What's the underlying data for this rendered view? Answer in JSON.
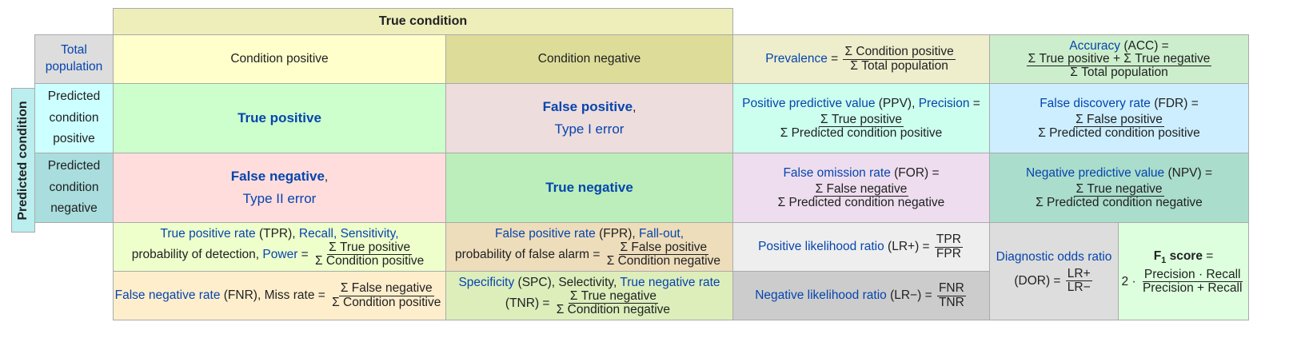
{
  "colors": {
    "link": "#0645ad",
    "true_condition_header": "#eeeebb",
    "total_population": "#dddddd",
    "condition_positive": "#ffffcc",
    "condition_negative": "#dddd99",
    "predicted_condition": "#bbeeee",
    "predicted_positive": "#ccffff",
    "predicted_negative": "#aadddd",
    "true_positive": "#ccffcc",
    "false_positive": "#eedddd",
    "false_negative": "#ffdddd",
    "true_negative": "#bbeebb",
    "prevalence": "#eeeecc",
    "accuracy": "#cceecc",
    "ppv": "#ccffee",
    "fdr": "#cceeff",
    "for": "#eeddee",
    "npv": "#aaddcc",
    "tpr": "#eeffcc",
    "fpr": "#eeddbb",
    "fnr": "#ffeecc",
    "tnr": "#ddeebb",
    "lr_pos": "#eeeeee",
    "lr_neg": "#cccccc",
    "dor": "#dddddd",
    "f1": "#ddffdd"
  },
  "header": {
    "true_condition": "True condition",
    "predicted_condition": "Predicted condition",
    "total_population": [
      "Total",
      "population"
    ],
    "condition_positive": "Condition positive",
    "condition_negative": "Condition negative",
    "predicted_condition_positive": [
      "Predicted",
      "condition",
      "positive"
    ],
    "predicted_condition_negative": [
      "Predicted",
      "condition",
      "negative"
    ]
  },
  "matrix": {
    "true_positive": "True positive",
    "false_positive": "False positive",
    "false_positive_suffix": ",",
    "type_i_error": "Type I error",
    "false_negative": "False negative",
    "false_negative_suffix": ",",
    "type_ii_error": "Type II error",
    "true_negative": "True negative"
  },
  "metrics": {
    "prevalence": {
      "name": "Prevalence",
      "eq": " = ",
      "num": "Σ Condition positive",
      "den": "Σ Total population"
    },
    "accuracy": {
      "name": "Accuracy",
      "abbr": " (ACC) =",
      "num": "Σ True positive + Σ True negative",
      "den": "Σ Total population"
    },
    "ppv": {
      "name": "Positive predictive value",
      "abbr": " (PPV), ",
      "alt": "Precision",
      "eq": " =",
      "num": "Σ True positive",
      "den": "Σ Predicted condition positive"
    },
    "fdr": {
      "name": "False discovery rate",
      "abbr": " (FDR) =",
      "num": "Σ False positive",
      "den": "Σ Predicted condition positive"
    },
    "for": {
      "name": "False omission rate",
      "abbr": " (FOR) =",
      "num": "Σ False negative",
      "den": "Σ Predicted condition negative"
    },
    "npv": {
      "name": "Negative predictive value",
      "abbr": " (NPV) =",
      "num": "Σ True negative",
      "den": "Σ Predicted condition negative"
    },
    "tpr": {
      "name": "True positive rate",
      "abbr": " (TPR), ",
      "recall": "Recall",
      "sep": ", ",
      "sensitivity": "Sensitivity",
      "comma": ",",
      "line2": "probability of detection, ",
      "power": "Power",
      "eq": " = ",
      "num": "Σ True positive",
      "den": "Σ Condition positive"
    },
    "fpr": {
      "name": "False positive rate",
      "abbr": " (FPR), ",
      "fallout": "Fall-out",
      "comma": ",",
      "line2": "probability of false alarm = ",
      "num": "Σ False positive",
      "den": "Σ Condition negative"
    },
    "fnr": {
      "name": "False negative rate",
      "abbr": " (FNR), Miss rate = ",
      "num": "Σ False negative",
      "den": "Σ Condition positive"
    },
    "tnr": {
      "name": "Specificity",
      "abbr": " (SPC), Selectivity, ",
      "alt": "True negative rate",
      "line2": "(TNR) = ",
      "num": "Σ True negative",
      "den": "Σ Condition negative"
    },
    "lr_pos": {
      "name": "Positive likelihood ratio",
      "abbr": " (LR+) = ",
      "num": "TPR",
      "den": "FPR"
    },
    "lr_neg": {
      "name": "Negative likelihood ratio",
      "abbr": " (LR−) = ",
      "num": "FNR",
      "den": "TNR"
    },
    "dor": {
      "name": "Diagnostic odds ratio",
      "line2": "(DOR) = ",
      "num": "LR+",
      "den": "LR−"
    },
    "f1": {
      "name": "F",
      "sub": "1",
      "suffix": " score",
      "eq": " =",
      "prefix": "2 · ",
      "num": "Precision · Recall",
      "den": "Precision + Recall"
    }
  }
}
